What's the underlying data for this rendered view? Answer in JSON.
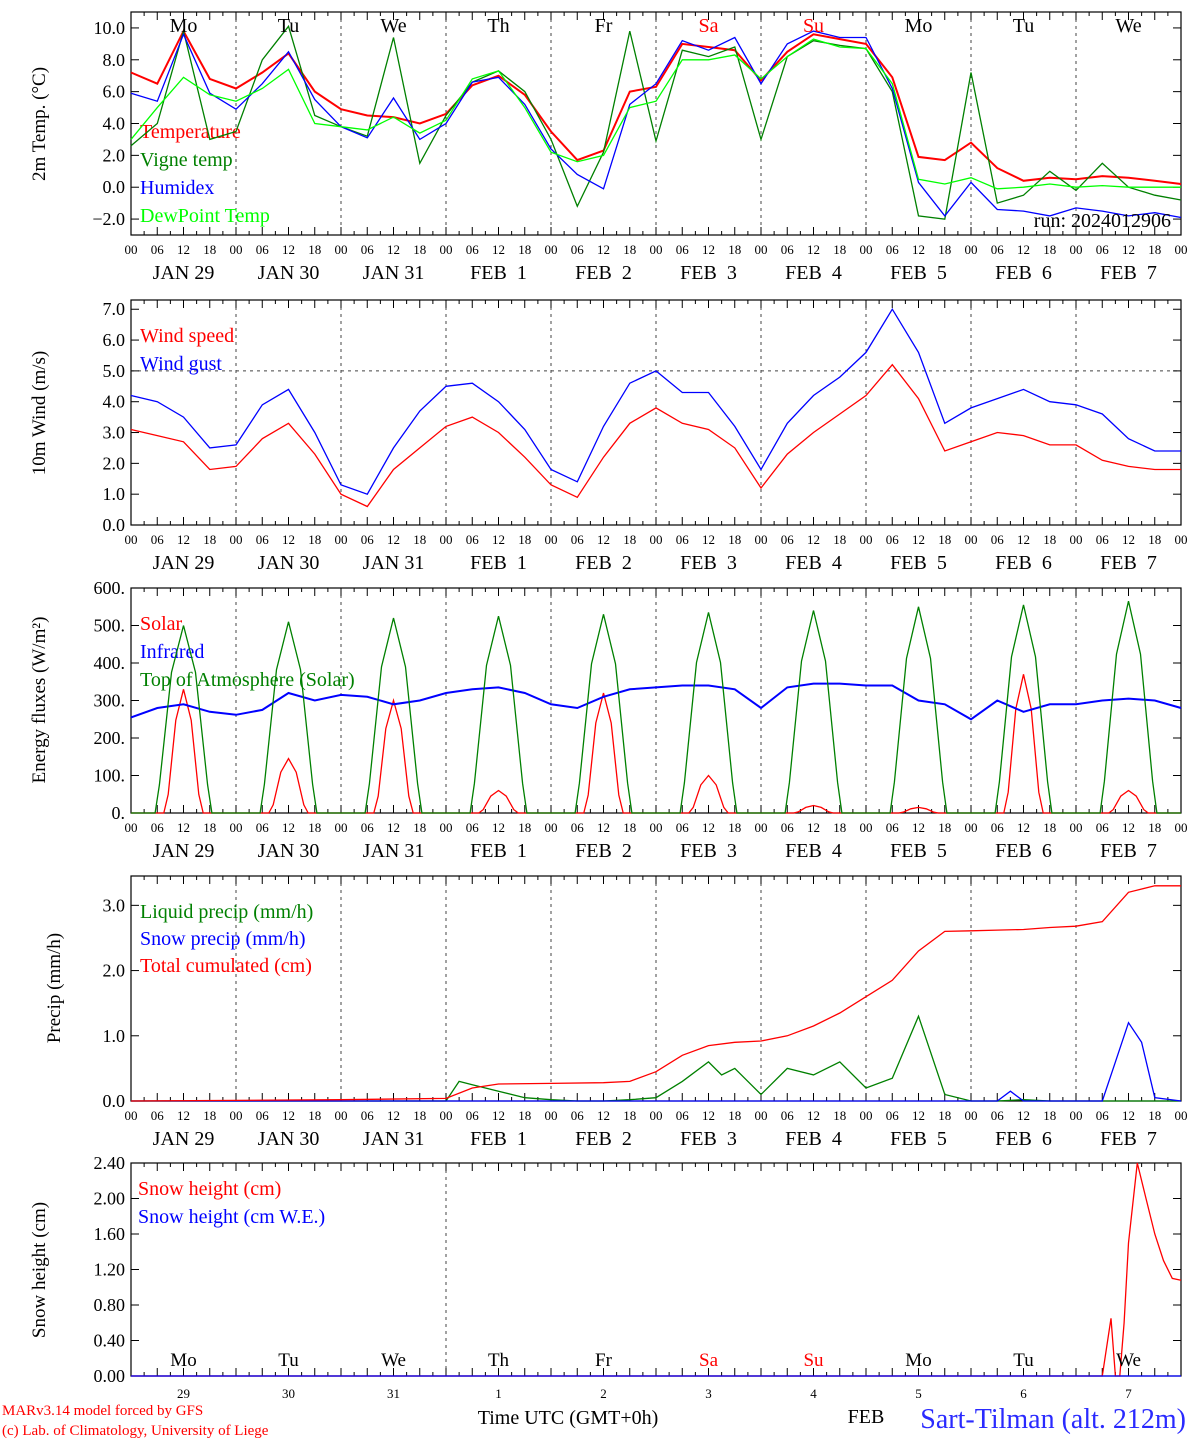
{
  "footer": {
    "credit_line1": "MARv3.14 model forced by GFS",
    "credit_line2": "(c) Lab. of Climatology, University of Liege",
    "xaxis_title": "Time UTC (GMT+0h)",
    "station": "Sart-Tilman (alt. 212m)",
    "month_label": "FEB"
  },
  "run_label": "run: 2024012906",
  "hour_ticks": [
    "00",
    "06",
    "12",
    "18"
  ],
  "date_labels": [
    "JAN 29",
    "JAN 30",
    "JAN 31",
    "FEB  1",
    "FEB  2",
    "FEB  3",
    "FEB  4",
    "FEB  5",
    "FEB  6",
    "FEB  7"
  ],
  "day_names": [
    "Mo",
    "Tu",
    "We",
    "Th",
    "Fr",
    "Sa",
    "Su",
    "Mo",
    "Tu",
    "We"
  ],
  "day_name_colors": [
    "#000000",
    "#000000",
    "#000000",
    "#000000",
    "#000000",
    "#ff0000",
    "#ff0000",
    "#000000",
    "#000000",
    "#000000"
  ],
  "day_numbers": [
    "29",
    "30",
    "31",
    "1",
    "2",
    "3",
    "4",
    "5",
    "6",
    "7"
  ],
  "chart_data": [
    {
      "type": "line",
      "id": "temp",
      "ylabel": "2m Temp. (°C)",
      "ylim": [
        -3.0,
        11.0
      ],
      "yticks": [
        -2.0,
        0.0,
        2.0,
        4.0,
        6.0,
        8.0,
        10.0
      ],
      "ytick_labels": [
        "−2.0",
        "0.0",
        "2.0",
        "4.0",
        "6.0",
        "8.0",
        "10.0"
      ],
      "xlim_hours": [
        0,
        240
      ],
      "grid": "dashed vertical at day boundaries",
      "series": [
        {
          "name": "Temperature",
          "color": "#ff0000",
          "x": [
            0,
            6,
            12,
            18,
            24,
            30,
            36,
            42,
            48,
            54,
            60,
            66,
            72,
            78,
            84,
            90,
            96,
            102,
            108,
            114,
            120,
            126,
            132,
            138,
            144,
            150,
            156,
            162,
            168,
            174,
            180,
            186,
            192,
            198,
            204,
            210,
            216,
            222,
            228,
            234,
            240
          ],
          "y": [
            7.2,
            6.5,
            9.8,
            6.8,
            6.2,
            7.2,
            8.4,
            6.0,
            4.9,
            4.5,
            4.4,
            4.0,
            4.6,
            6.4,
            7.0,
            5.8,
            3.5,
            1.7,
            2.3,
            6.0,
            6.3,
            9.0,
            8.8,
            8.6,
            6.7,
            8.5,
            9.6,
            9.3,
            9.0,
            6.9,
            1.9,
            1.7,
            2.8,
            1.2,
            0.4,
            0.6,
            0.5,
            0.7,
            0.6,
            0.4,
            0.2
          ]
        },
        {
          "name": "Vigne temp",
          "color": "#008000",
          "x": [
            0,
            6,
            12,
            18,
            24,
            30,
            36,
            42,
            48,
            54,
            60,
            66,
            72,
            78,
            84,
            90,
            96,
            102,
            108,
            114,
            120,
            126,
            132,
            138,
            144,
            150,
            156,
            162,
            168,
            174,
            180,
            186,
            192,
            198,
            204,
            210,
            216,
            222,
            228,
            234,
            240
          ],
          "y": [
            2.6,
            4.0,
            9.8,
            3.0,
            3.5,
            8.0,
            10.1,
            4.5,
            3.8,
            3.2,
            9.4,
            1.5,
            4.5,
            6.6,
            7.3,
            6.0,
            3.0,
            -1.2,
            2.2,
            9.8,
            2.9,
            8.6,
            8.2,
            8.8,
            3.0,
            8.2,
            9.2,
            8.9,
            8.7,
            6.0,
            -1.8,
            -2.0,
            7.2,
            -1.0,
            -0.5,
            1.0,
            -0.2,
            1.5,
            0.0,
            -0.5,
            -0.8
          ]
        },
        {
          "name": "Humidex",
          "color": "#0000ff",
          "x": [
            0,
            6,
            12,
            18,
            24,
            30,
            36,
            42,
            48,
            54,
            60,
            66,
            72,
            78,
            84,
            90,
            96,
            102,
            108,
            114,
            120,
            126,
            132,
            138,
            144,
            150,
            156,
            162,
            168,
            174,
            180,
            186,
            192,
            198,
            204,
            210,
            216,
            222,
            228,
            234,
            240
          ],
          "y": [
            5.9,
            5.4,
            9.6,
            5.9,
            4.9,
            6.5,
            8.5,
            5.5,
            3.8,
            3.1,
            5.6,
            3.0,
            4.0,
            6.6,
            6.9,
            5.2,
            2.4,
            0.8,
            -0.1,
            5.2,
            6.5,
            9.2,
            8.6,
            9.4,
            6.5,
            9.0,
            9.8,
            9.4,
            9.4,
            6.2,
            0.3,
            -1.8,
            0.3,
            -1.4,
            -1.5,
            -1.8,
            -1.3,
            -1.5,
            -1.8,
            -1.6,
            -1.9
          ]
        },
        {
          "name": "DewPoint Temp",
          "color": "#00ff00",
          "x": [
            0,
            6,
            12,
            18,
            24,
            30,
            36,
            42,
            48,
            54,
            60,
            66,
            72,
            78,
            84,
            90,
            96,
            102,
            108,
            114,
            120,
            126,
            132,
            138,
            144,
            150,
            156,
            162,
            168,
            174,
            180,
            186,
            192,
            198,
            204,
            210,
            216,
            222,
            228,
            234,
            240
          ],
          "y": [
            3.0,
            5.0,
            6.9,
            5.8,
            5.4,
            6.2,
            7.4,
            4.0,
            3.8,
            3.6,
            4.4,
            3.4,
            4.2,
            6.8,
            7.3,
            5.0,
            2.2,
            1.6,
            2.0,
            5.0,
            5.4,
            8.0,
            8.0,
            8.3,
            6.8,
            8.2,
            9.3,
            8.8,
            8.7,
            6.5,
            0.5,
            0.2,
            0.6,
            -0.1,
            0.0,
            0.2,
            0.0,
            0.1,
            0.0,
            0.0,
            0.0
          ]
        }
      ]
    },
    {
      "type": "line",
      "id": "wind",
      "ylabel": "10m Wind (m/s)",
      "ylim": [
        0.0,
        7.3
      ],
      "yticks": [
        0.0,
        1.0,
        2.0,
        3.0,
        4.0,
        5.0,
        6.0,
        7.0
      ],
      "ytick_labels": [
        "0.0",
        "1.0",
        "2.0",
        "3.0",
        "4.0",
        "5.0",
        "6.0",
        "7.0"
      ],
      "reference_line": 5.0,
      "xlim_hours": [
        0,
        240
      ],
      "series": [
        {
          "name": "Wind speed",
          "color": "#ff0000",
          "x": [
            0,
            6,
            12,
            18,
            24,
            30,
            36,
            42,
            48,
            54,
            60,
            66,
            72,
            78,
            84,
            90,
            96,
            102,
            108,
            114,
            120,
            126,
            132,
            138,
            144,
            150,
            156,
            162,
            168,
            174,
            180,
            186,
            192,
            198,
            204,
            210,
            216,
            222,
            228,
            234,
            240
          ],
          "y": [
            3.1,
            2.9,
            2.7,
            1.8,
            1.9,
            2.8,
            3.3,
            2.3,
            1.0,
            0.6,
            1.8,
            2.5,
            3.2,
            3.5,
            3.0,
            2.2,
            1.3,
            0.9,
            2.2,
            3.3,
            3.8,
            3.3,
            3.1,
            2.5,
            1.2,
            2.3,
            3.0,
            3.6,
            4.2,
            5.2,
            4.1,
            2.4,
            2.7,
            3.0,
            2.9,
            2.6,
            2.6,
            2.1,
            1.9,
            1.8,
            1.8
          ]
        },
        {
          "name": "Wind gust",
          "color": "#0000ff",
          "x": [
            0,
            6,
            12,
            18,
            24,
            30,
            36,
            42,
            48,
            54,
            60,
            66,
            72,
            78,
            84,
            90,
            96,
            102,
            108,
            114,
            120,
            126,
            132,
            138,
            144,
            150,
            156,
            162,
            168,
            174,
            180,
            186,
            192,
            198,
            204,
            210,
            216,
            222,
            228,
            234,
            240
          ],
          "y": [
            4.2,
            4.0,
            3.5,
            2.5,
            2.6,
            3.9,
            4.4,
            3.0,
            1.3,
            1.0,
            2.5,
            3.7,
            4.5,
            4.6,
            4.0,
            3.1,
            1.8,
            1.4,
            3.2,
            4.6,
            5.0,
            4.3,
            4.3,
            3.2,
            1.8,
            3.3,
            4.2,
            4.8,
            5.6,
            7.0,
            5.6,
            3.3,
            3.8,
            4.1,
            4.4,
            4.0,
            3.9,
            3.6,
            2.8,
            2.4,
            2.4
          ]
        }
      ]
    },
    {
      "type": "line",
      "id": "energy",
      "ylabel": "Energy fluxes (W/m²)",
      "ylim": [
        0,
        600
      ],
      "yticks": [
        0,
        100,
        200,
        300,
        400,
        500,
        600
      ],
      "ytick_labels": [
        "0.",
        "100.",
        "200.",
        "300.",
        "400.",
        "500.",
        "600."
      ],
      "xlim_hours": [
        0,
        240
      ],
      "series": [
        {
          "name": "Solar",
          "color": "#ff0000",
          "daily_peak": [
            330,
            145,
            300,
            60,
            320,
            100,
            20,
            15,
            370,
            60
          ]
        },
        {
          "name": "Infrared",
          "color": "#0000ff",
          "x": [
            0,
            6,
            12,
            18,
            24,
            30,
            36,
            42,
            48,
            54,
            60,
            66,
            72,
            78,
            84,
            90,
            96,
            102,
            108,
            114,
            120,
            126,
            132,
            138,
            144,
            150,
            156,
            162,
            168,
            174,
            180,
            186,
            192,
            198,
            204,
            210,
            216,
            222,
            228,
            234,
            240
          ],
          "y": [
            255,
            280,
            290,
            270,
            262,
            275,
            320,
            300,
            315,
            310,
            290,
            300,
            320,
            330,
            335,
            320,
            290,
            280,
            310,
            330,
            335,
            340,
            340,
            330,
            280,
            335,
            345,
            345,
            340,
            340,
            300,
            290,
            250,
            300,
            270,
            290,
            290,
            300,
            305,
            300,
            280
          ]
        },
        {
          "name": "Top of Atmosphere (Solar)",
          "color": "#008000",
          "daily_peak": [
            500,
            510,
            520,
            525,
            530,
            535,
            540,
            550,
            555,
            565
          ]
        }
      ]
    },
    {
      "type": "line",
      "id": "precip",
      "ylabel": "Precip (mm/h)",
      "ylim": [
        0.0,
        3.45
      ],
      "yticks": [
        0.0,
        1.0,
        2.0,
        3.0
      ],
      "ytick_labels": [
        "0.0",
        "1.0",
        "2.0",
        "3.0"
      ],
      "xlim_hours": [
        0,
        240
      ],
      "series": [
        {
          "name": "Liquid precip (mm/h)",
          "color": "#008000",
          "x": [
            0,
            72,
            75,
            78,
            84,
            90,
            96,
            102,
            108,
            114,
            120,
            126,
            132,
            135,
            138,
            141,
            144,
            150,
            156,
            162,
            168,
            174,
            180,
            186,
            192,
            198,
            204,
            210,
            216,
            222,
            228,
            234,
            240
          ],
          "y": [
            0,
            0,
            0.3,
            0.25,
            0.15,
            0.05,
            0.02,
            0.0,
            0.0,
            0.02,
            0.05,
            0.3,
            0.6,
            0.4,
            0.5,
            0.3,
            0.1,
            0.5,
            0.4,
            0.6,
            0.2,
            0.35,
            1.3,
            0.1,
            0.0,
            0.0,
            0.02,
            0.0,
            0.0,
            0.0,
            0.0,
            0.0,
            0.0
          ]
        },
        {
          "name": "Snow precip (mm/h)",
          "color": "#0000ff",
          "x": [
            0,
            168,
            198,
            201,
            204,
            216,
            222,
            225,
            228,
            231,
            234,
            240
          ],
          "y": [
            0,
            0,
            0,
            0.15,
            0,
            0,
            0,
            0.6,
            1.2,
            0.9,
            0.05,
            0.0
          ]
        },
        {
          "name": "Total cumulated (cm)",
          "color": "#ff0000",
          "x": [
            0,
            48,
            72,
            78,
            84,
            96,
            108,
            114,
            120,
            126,
            132,
            138,
            144,
            150,
            156,
            162,
            168,
            174,
            180,
            186,
            192,
            198,
            204,
            210,
            216,
            222,
            228,
            234,
            240
          ],
          "y": [
            0,
            0.02,
            0.04,
            0.2,
            0.26,
            0.27,
            0.28,
            0.3,
            0.45,
            0.7,
            0.85,
            0.9,
            0.92,
            1.0,
            1.15,
            1.35,
            1.6,
            1.85,
            2.3,
            2.6,
            2.61,
            2.62,
            2.63,
            2.66,
            2.68,
            2.75,
            3.2,
            3.3,
            3.3
          ]
        }
      ]
    },
    {
      "type": "line",
      "id": "snow",
      "ylabel": "Snow height (cm)",
      "ylim": [
        0.0,
        2.4
      ],
      "yticks": [
        0.0,
        0.4,
        0.8,
        1.2,
        1.6,
        2.0,
        2.4
      ],
      "ytick_labels": [
        "0.00",
        "0.40",
        "0.80",
        "1.20",
        "1.60",
        "2.00",
        "2.40"
      ],
      "xlim_hours": [
        0,
        240
      ],
      "series": [
        {
          "name": "Snow height (cm)",
          "color": "#ff0000",
          "x": [
            0,
            222,
            224,
            225,
            226,
            227,
            228,
            230,
            232,
            234,
            236,
            238,
            240
          ],
          "y": [
            0,
            0,
            0.65,
            0,
            0,
            0.6,
            1.5,
            2.4,
            2.0,
            1.6,
            1.3,
            1.1,
            1.08
          ]
        },
        {
          "name": "Snow height (cm W.E.)",
          "color": "#0000ff",
          "x": [
            0,
            240
          ],
          "y": [
            0,
            0
          ]
        }
      ]
    }
  ]
}
